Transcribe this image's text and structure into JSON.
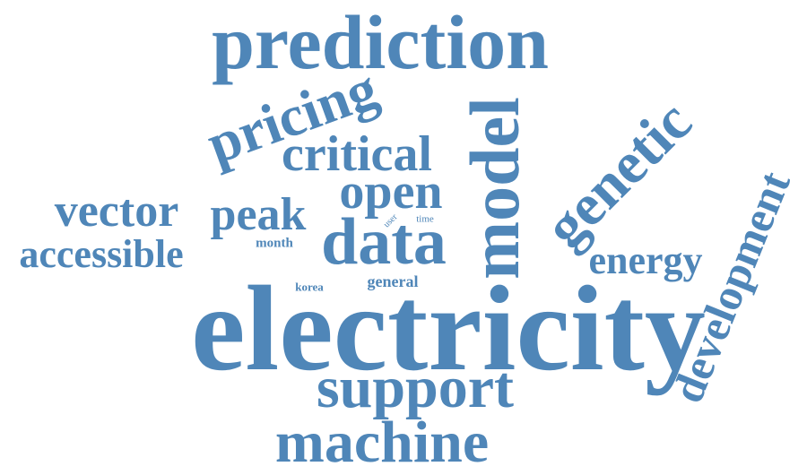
{
  "word_cloud": {
    "color": "#4f86b8",
    "words": [
      {
        "id": "electricity",
        "text": "electricity"
      },
      {
        "id": "prediction",
        "text": "prediction"
      },
      {
        "id": "machine",
        "text": "machine"
      },
      {
        "id": "support",
        "text": "support"
      },
      {
        "id": "model",
        "text": "model"
      },
      {
        "id": "data",
        "text": "data"
      },
      {
        "id": "genetic",
        "text": "genetic"
      },
      {
        "id": "development",
        "text": "development"
      },
      {
        "id": "pricing",
        "text": "pricing"
      },
      {
        "id": "critical",
        "text": "critical"
      },
      {
        "id": "open",
        "text": "open"
      },
      {
        "id": "vector",
        "text": "vector"
      },
      {
        "id": "peak",
        "text": "peak"
      },
      {
        "id": "accessible",
        "text": "accessible"
      },
      {
        "id": "energy",
        "text": "energy"
      },
      {
        "id": "general",
        "text": "general"
      },
      {
        "id": "month",
        "text": "month"
      },
      {
        "id": "korea",
        "text": "korea"
      },
      {
        "id": "user",
        "text": "user"
      },
      {
        "id": "time",
        "text": "time"
      }
    ]
  }
}
